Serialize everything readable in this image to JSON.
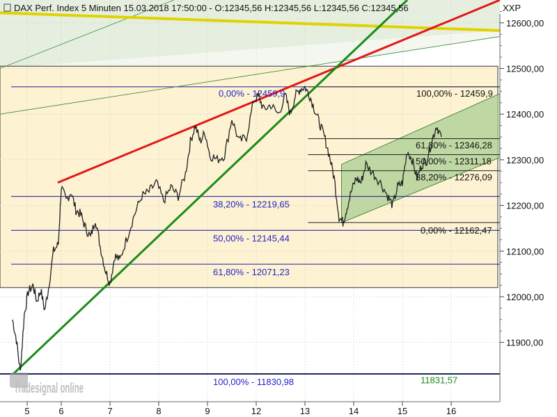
{
  "window": {
    "title": "DAX Perf. Index 5 Minuten  15.03.2018 17:50:00 - O:12345,56 H:12345,56 L:12345,56 C:12345,56",
    "axis_unit": "XXP",
    "watermark": "Tradesignal online"
  },
  "colors": {
    "background": "#ffffff",
    "plot_bg": "#ffffff",
    "fib_box_fill": "#fdf2d2",
    "upper_fan_fill": "#e6efdf",
    "channel_fill": "#a9cf93",
    "red_trend": "#e01818",
    "green_trend": "#1a8a1a",
    "yellow_line": "#e0d200",
    "fib_line_blue": "#1818a0",
    "fib_line_black": "#202020",
    "fib_label_blue": "#2424c8",
    "fib_label_black": "#111111",
    "low_label_green": "#1d8a1d",
    "grid": "#c8c8c8",
    "price": "#202020"
  },
  "chart_data": {
    "type": "line",
    "instrument": "DAX Perf. Index",
    "interval": "5 Minuten",
    "unit": "XXP",
    "title": "DAX Perf. Index 5 Minuten",
    "ylim": [
      11770,
      12650
    ],
    "y_ticks": [
      11900,
      12000,
      12100,
      12200,
      12300,
      12400,
      12500,
      12600
    ],
    "y_tick_labels": [
      "11900,00",
      "12000,00",
      "12100,00",
      "12200,00",
      "12300,00",
      "12400,00",
      "12500,00",
      "12600,00"
    ],
    "x_day_labels": [
      {
        "label": "5",
        "t": 0.3
      },
      {
        "label": "6",
        "t": 1.0
      },
      {
        "label": "7",
        "t": 2.0
      },
      {
        "label": "8",
        "t": 3.0
      },
      {
        "label": "9",
        "t": 4.0
      },
      {
        "label": "12",
        "t": 5.0
      },
      {
        "label": "13",
        "t": 6.0
      },
      {
        "label": "14",
        "t": 7.0
      },
      {
        "label": "15",
        "t": 8.0
      },
      {
        "label": "16",
        "t": 9.0
      }
    ],
    "xlim": [
      0,
      10
    ],
    "grid": true,
    "price_series": {
      "name": "DAX Perf. Index",
      "anchors": [
        [
          0.0,
          11950
        ],
        [
          0.08,
          11905
        ],
        [
          0.16,
          11835
        ],
        [
          0.24,
          11960
        ],
        [
          0.32,
          12010
        ],
        [
          0.42,
          12025
        ],
        [
          0.5,
          11990
        ],
        [
          0.58,
          12015
        ],
        [
          0.66,
          11970
        ],
        [
          0.74,
          12020
        ],
        [
          0.84,
          12100
        ],
        [
          0.94,
          12115
        ],
        [
          1.0,
          12240
        ],
        [
          1.1,
          12210
        ],
        [
          1.2,
          12230
        ],
        [
          1.3,
          12190
        ],
        [
          1.4,
          12180
        ],
        [
          1.5,
          12150
        ],
        [
          1.6,
          12130
        ],
        [
          1.7,
          12170
        ],
        [
          1.8,
          12110
        ],
        [
          1.9,
          12060
        ],
        [
          2.0,
          12030
        ],
        [
          2.1,
          12090
        ],
        [
          2.2,
          12080
        ],
        [
          2.35,
          12130
        ],
        [
          2.5,
          12180
        ],
        [
          2.65,
          12220
        ],
        [
          2.8,
          12230
        ],
        [
          2.95,
          12250
        ],
        [
          3.1,
          12210
        ],
        [
          3.25,
          12240
        ],
        [
          3.4,
          12220
        ],
        [
          3.55,
          12270
        ],
        [
          3.65,
          12340
        ],
        [
          3.75,
          12375
        ],
        [
          3.85,
          12340
        ],
        [
          3.95,
          12360
        ],
        [
          4.05,
          12310
        ],
        [
          4.2,
          12300
        ],
        [
          4.35,
          12310
        ],
        [
          4.5,
          12390
        ],
        [
          4.65,
          12340
        ],
        [
          4.8,
          12350
        ],
        [
          4.95,
          12430
        ],
        [
          5.05,
          12440
        ],
        [
          5.15,
          12410
        ],
        [
          5.3,
          12420
        ],
        [
          5.45,
          12400
        ],
        [
          5.6,
          12440
        ],
        [
          5.7,
          12400
        ],
        [
          5.8,
          12440
        ],
        [
          5.9,
          12455
        ],
        [
          6.0,
          12459
        ],
        [
          6.1,
          12440
        ],
        [
          6.2,
          12410
        ],
        [
          6.3,
          12380
        ],
        [
          6.4,
          12350
        ],
        [
          6.5,
          12310
        ],
        [
          6.6,
          12260
        ],
        [
          6.7,
          12175
        ],
        [
          6.78,
          12163
        ],
        [
          6.85,
          12190
        ],
        [
          6.95,
          12230
        ],
        [
          7.05,
          12260
        ],
        [
          7.15,
          12250
        ],
        [
          7.25,
          12290
        ],
        [
          7.4,
          12270
        ],
        [
          7.55,
          12250
        ],
        [
          7.7,
          12220
        ],
        [
          7.8,
          12200
        ],
        [
          7.9,
          12240
        ],
        [
          8.0,
          12250
        ],
        [
          8.1,
          12320
        ],
        [
          8.2,
          12300
        ],
        [
          8.3,
          12260
        ],
        [
          8.4,
          12290
        ],
        [
          8.5,
          12300
        ],
        [
          8.6,
          12340
        ],
        [
          8.7,
          12375
        ],
        [
          8.8,
          12350
        ]
      ]
    },
    "annotations": {
      "fib_retracement_major": {
        "high": 12459.9,
        "low": 11830.98,
        "levels": [
          {
            "pct_label": "0,00% - 12459,9",
            "price": 12459.9
          },
          {
            "pct_label": "38,20% - 12219,65",
            "price": 12219.65
          },
          {
            "pct_label": "50,00% - 12145,44",
            "price": 12145.44
          },
          {
            "pct_label": "61,80% - 12071,23",
            "price": 12071.23
          },
          {
            "pct_label": "100,00% - 11830,98",
            "price": 11830.98
          }
        ]
      },
      "fib_retracement_minor": {
        "high": 12459.9,
        "low": 12162.47,
        "levels": [
          {
            "pct_label": "100,00% - 12459,9",
            "price": 12459.9
          },
          {
            "pct_label": "61,80% - 12346,28",
            "price": 12346.28
          },
          {
            "pct_label": "50,00% - 12311,18",
            "price": 12311.18
          },
          {
            "pct_label": "38,20% - 12276,09",
            "price": 12276.09
          },
          {
            "pct_label": "0,00% - 12162,47",
            "price": 12162.47
          }
        ]
      },
      "low_marker": {
        "label": "11831,57",
        "price": 11831.57
      },
      "fib_box_range": [
        12020,
        12505
      ],
      "channel": {
        "lower_start": [
          6.75,
          12162
        ],
        "lower_end": [
          10.0,
          12305
        ],
        "upper_start": [
          6.75,
          12290
        ],
        "upper_end": [
          10.0,
          12445
        ]
      },
      "red_trendline": {
        "start": [
          1.0,
          12250
        ],
        "end": [
          10.0,
          12650
        ]
      },
      "green_trendline": {
        "start": [
          0.05,
          11830
        ],
        "end": [
          8.1,
          12650
        ]
      },
      "yellow_line": {
        "start": [
          0.0,
          12622
        ],
        "end": [
          10.0,
          12583
        ]
      }
    }
  }
}
